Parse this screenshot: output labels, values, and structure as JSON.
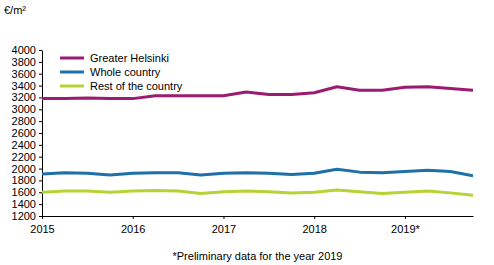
{
  "chart_data": {
    "type": "line",
    "y_label": "€/m²",
    "annotations": [
      "*Preliminary data for the year 2019"
    ],
    "categories": [
      "2015",
      null,
      null,
      null,
      "2016",
      null,
      null,
      null,
      "2017",
      null,
      null,
      null,
      "2018",
      null,
      null,
      null,
      "2019*",
      null,
      null,
      null
    ],
    "series": [
      {
        "name": "Greater Helsinki",
        "color": "#9c1b72",
        "values": [
          3180,
          3180,
          3190,
          3180,
          3180,
          3230,
          3230,
          3230,
          3230,
          3290,
          3250,
          3250,
          3280,
          3380,
          3320,
          3320,
          3370,
          3380,
          3350,
          3320
        ]
      },
      {
        "name": "Whole country",
        "color": "#1f6fa8",
        "values": [
          1910,
          1930,
          1920,
          1890,
          1920,
          1930,
          1930,
          1890,
          1920,
          1930,
          1920,
          1900,
          1920,
          1990,
          1940,
          1930,
          1950,
          1970,
          1950,
          1880
        ]
      },
      {
        "name": "Rest of the country",
        "color": "#b4d334",
        "values": [
          1600,
          1620,
          1620,
          1600,
          1620,
          1630,
          1620,
          1580,
          1610,
          1620,
          1610,
          1590,
          1600,
          1640,
          1610,
          1580,
          1600,
          1620,
          1590,
          1550
        ]
      }
    ],
    "ylim": [
      1200,
      4000
    ],
    "yticks": [
      1200,
      1400,
      1600,
      1800,
      2000,
      2200,
      2400,
      2600,
      2800,
      3000,
      3200,
      3400,
      3600,
      3800,
      4000
    ],
    "grid": false,
    "legend": "upper left"
  }
}
